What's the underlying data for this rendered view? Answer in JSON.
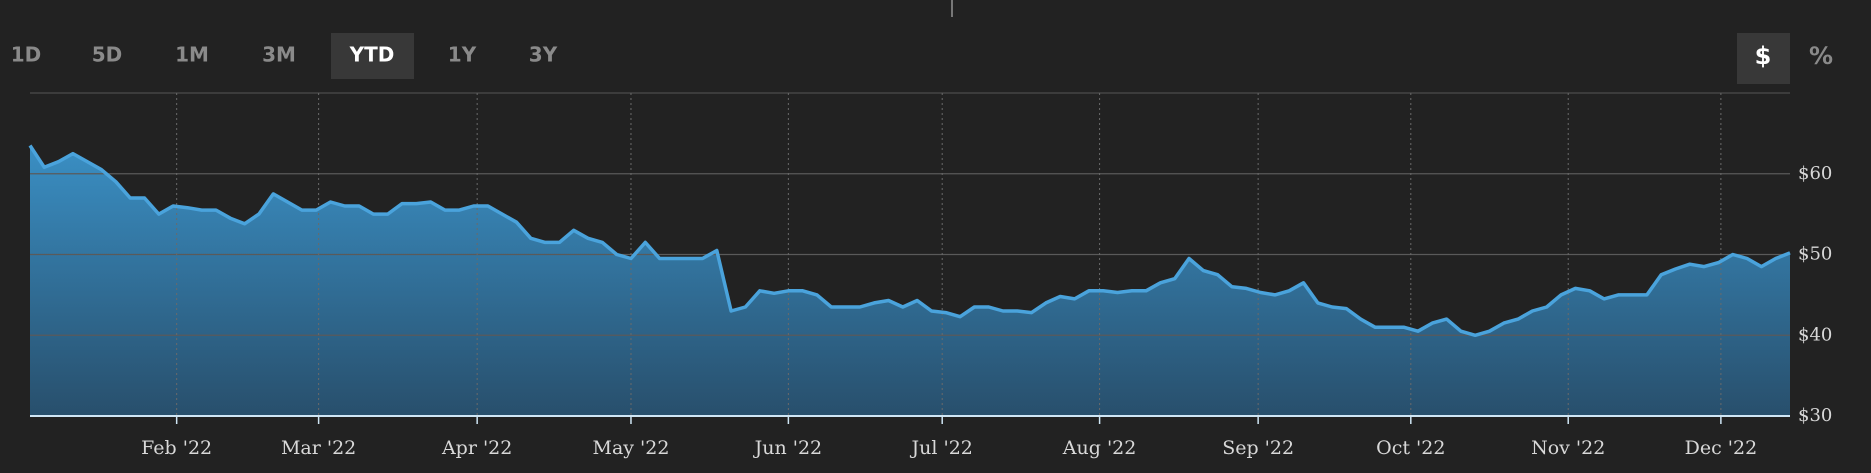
{
  "controls": {
    "ranges": [
      "1D",
      "5D",
      "1M",
      "3M",
      "YTD",
      "1Y",
      "3Y"
    ],
    "active_range": 4,
    "units": [
      "$",
      "%"
    ],
    "active_unit": 0
  },
  "chart_data": {
    "type": "area",
    "color": "#4aa3dc",
    "values": [
      63.5,
      60.8,
      61.5,
      62.5,
      61.5,
      60.5,
      59,
      57,
      57,
      55,
      56,
      55.8,
      55.5,
      55.5,
      54.5,
      53.8,
      55,
      57.5,
      56.5,
      55.5,
      55.5,
      56.5,
      56,
      56,
      55,
      55,
      56.3,
      56.3,
      56.5,
      55.5,
      55.5,
      56,
      56,
      55,
      54,
      52,
      51.5,
      51.5,
      53,
      52,
      51.5,
      50,
      49.5,
      51.5,
      49.5,
      49.5,
      49.5,
      49.5,
      50.5,
      43,
      43.5,
      45.5,
      45.2,
      45.5,
      45.5,
      45,
      43.5,
      43.5,
      43.5,
      44,
      44.3,
      43.5,
      44.3,
      43,
      42.8,
      42.3,
      43.5,
      43.5,
      43,
      43,
      42.8,
      44,
      44.8,
      44.5,
      45.5,
      45.5,
      45.3,
      45.5,
      45.5,
      46.5,
      47,
      49.5,
      48,
      47.5,
      46,
      45.8,
      45.3,
      45,
      45.5,
      46.5,
      44,
      43.5,
      43.3,
      42,
      41,
      41,
      41,
      40.5,
      41.5,
      42,
      40.5,
      40,
      40.5,
      41.5,
      42,
      43,
      43.5,
      45,
      45.8,
      45.5,
      44.5,
      45,
      45,
      45,
      47.5,
      48.2,
      48.8,
      48.5,
      49,
      50,
      49.5,
      48.5,
      49.5,
      50.2
    ],
    "xlim": [
      0,
      123
    ],
    "xticks": [
      {
        "value": 10.25,
        "label": "Feb '22"
      },
      {
        "value": 20.17,
        "label": "Mar '22"
      },
      {
        "value": 31.25,
        "label": "Apr '22"
      },
      {
        "value": 42,
        "label": "May '22"
      },
      {
        "value": 53,
        "label": "Jun '22"
      },
      {
        "value": 63.75,
        "label": "Jul '22"
      },
      {
        "value": 74.75,
        "label": "Aug '22"
      },
      {
        "value": 85.83,
        "label": "Sep '22"
      },
      {
        "value": 96.5,
        "label": "Oct '22"
      },
      {
        "value": 107.5,
        "label": "Nov '22"
      },
      {
        "value": 118.17,
        "label": "Dec '22"
      }
    ],
    "ylim": [
      30,
      70
    ],
    "yticks": [
      {
        "value": 30,
        "label": "$30"
      },
      {
        "value": 40,
        "label": "$40"
      },
      {
        "value": 50,
        "label": "$50"
      },
      {
        "value": 60,
        "label": "$60"
      }
    ],
    "grid": true
  }
}
